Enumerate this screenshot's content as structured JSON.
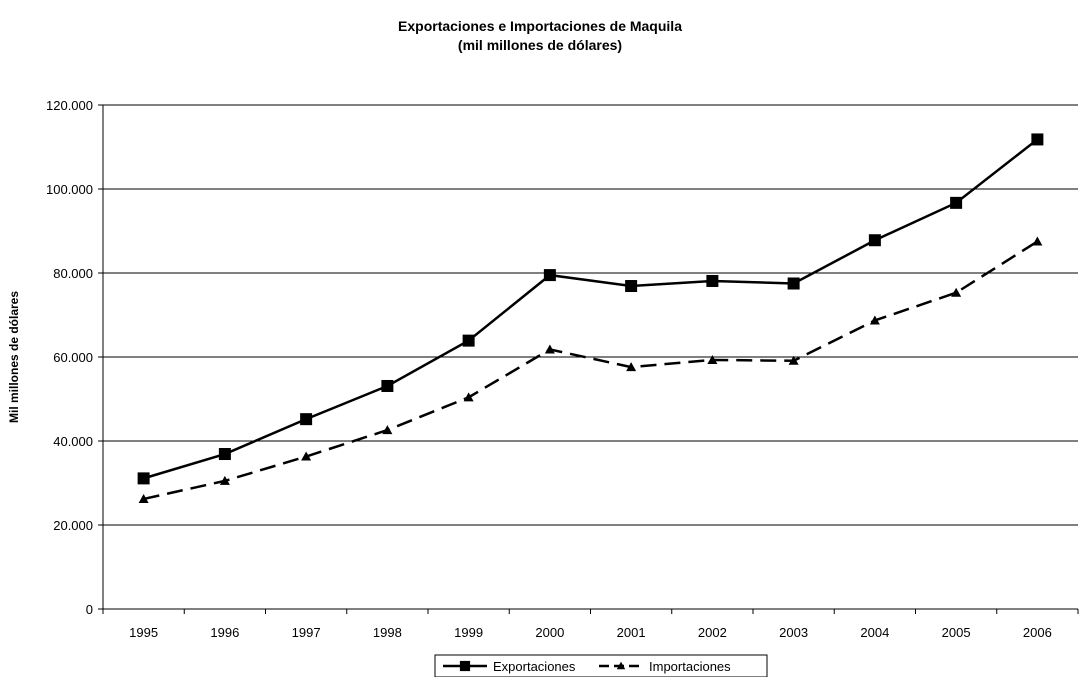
{
  "chart_data": {
    "type": "line",
    "title": "Exportaciones e Importaciones de Maquila",
    "subtitle": "(mil millones de dólares)",
    "xlabel": "",
    "ylabel": "Mil millones de dólares",
    "categories": [
      "1995",
      "1996",
      "1997",
      "1998",
      "1999",
      "2000",
      "2001",
      "2002",
      "2003",
      "2004",
      "2005",
      "2006"
    ],
    "ylim": [
      0,
      120000
    ],
    "yticks": [
      {
        "value": 0,
        "label": "0"
      },
      {
        "value": 20000,
        "label": "20.000"
      },
      {
        "value": 40000,
        "label": "40.000"
      },
      {
        "value": 60000,
        "label": "60.000"
      },
      {
        "value": 80000,
        "label": "80.000"
      },
      {
        "value": 100000,
        "label": "100.000"
      },
      {
        "value": 120000,
        "label": "120.000"
      }
    ],
    "grid": "horizontal",
    "legend_position": "bottom",
    "series": [
      {
        "name": "Exportaciones",
        "marker": "square",
        "line": "solid",
        "color": "#000000",
        "values": [
          31100,
          36900,
          45200,
          53100,
          63900,
          79500,
          76900,
          78100,
          77500,
          87800,
          96700,
          111800
        ]
      },
      {
        "name": "Importaciones",
        "marker": "triangle",
        "line": "dashed",
        "color": "#000000",
        "values": [
          26200,
          30500,
          36300,
          42600,
          50400,
          61800,
          57600,
          59300,
          59100,
          68700,
          75300,
          87500
        ]
      }
    ]
  }
}
